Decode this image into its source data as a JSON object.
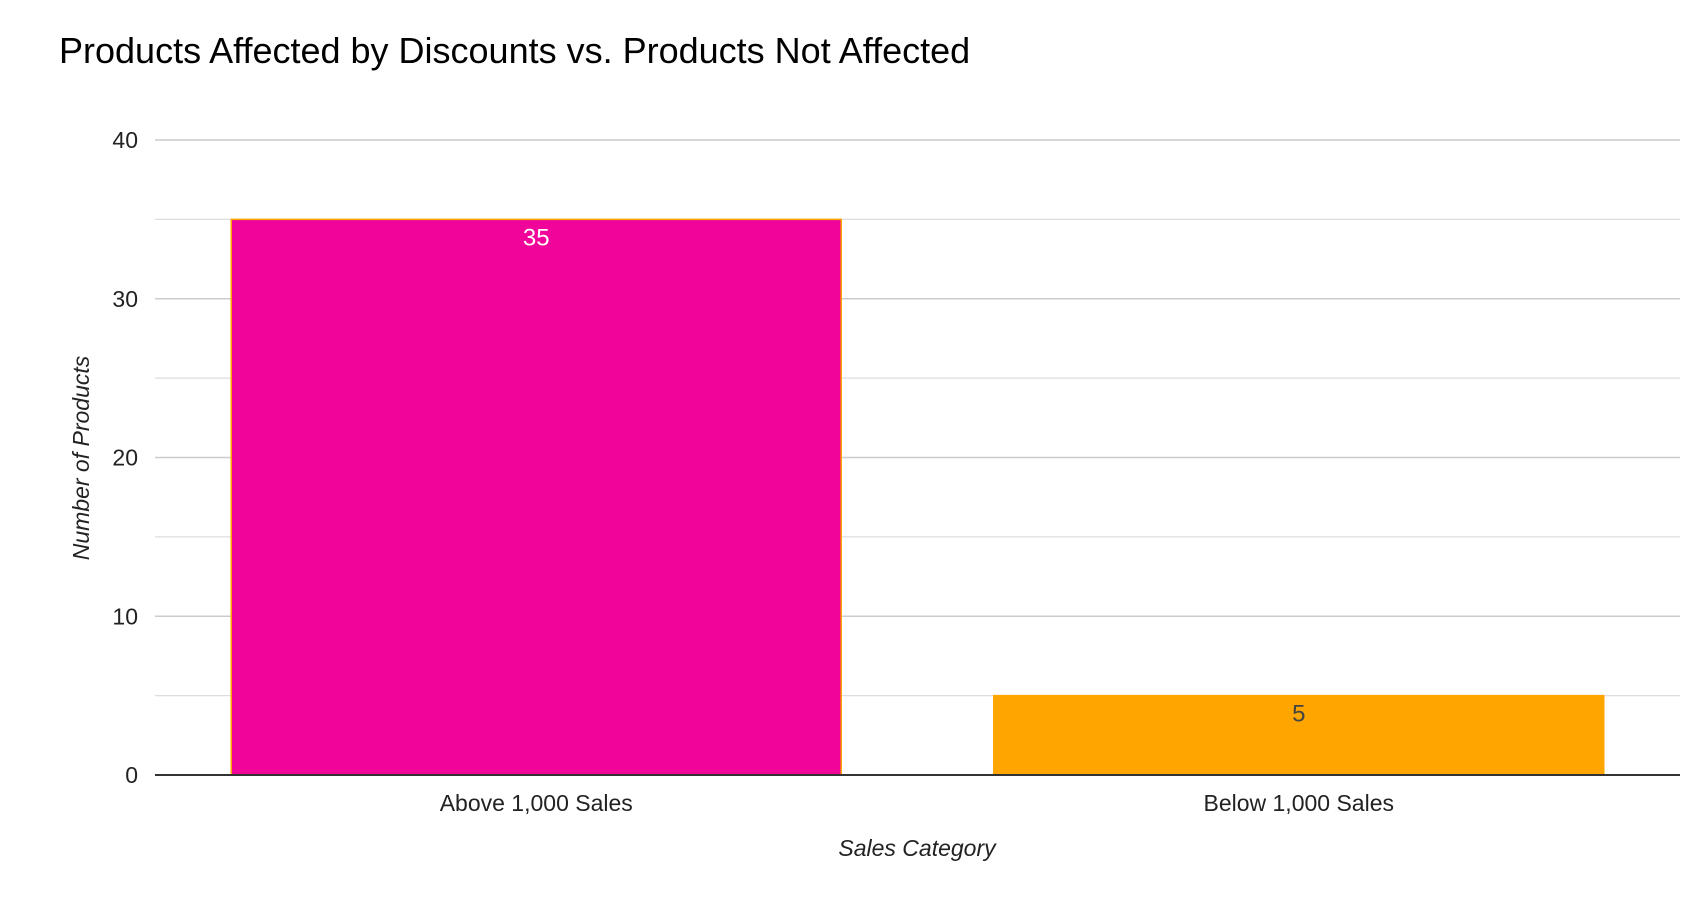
{
  "chart_data": {
    "type": "bar",
    "title": "Products Affected by Discounts vs. Products Not Affected",
    "xlabel": "Sales Category",
    "ylabel": "Number of Products",
    "categories": [
      "Above 1,000 Sales",
      "Below 1,000 Sales"
    ],
    "values": [
      35,
      5
    ],
    "data_labels": [
      "35",
      "5"
    ],
    "bar_colors": [
      "#f0049a",
      "#ffa500"
    ],
    "bar_border_color": "#ffa500",
    "data_label_colors": [
      "#ffffff",
      "#444444"
    ],
    "ylim": [
      0,
      40
    ],
    "y_ticks": [
      0,
      10,
      20,
      30,
      40
    ],
    "y_tick_labels": [
      "0",
      "10",
      "20",
      "30",
      "40"
    ],
    "minor_gridlines": [
      5,
      15,
      25,
      35
    ],
    "grid": true,
    "legend": "none"
  }
}
